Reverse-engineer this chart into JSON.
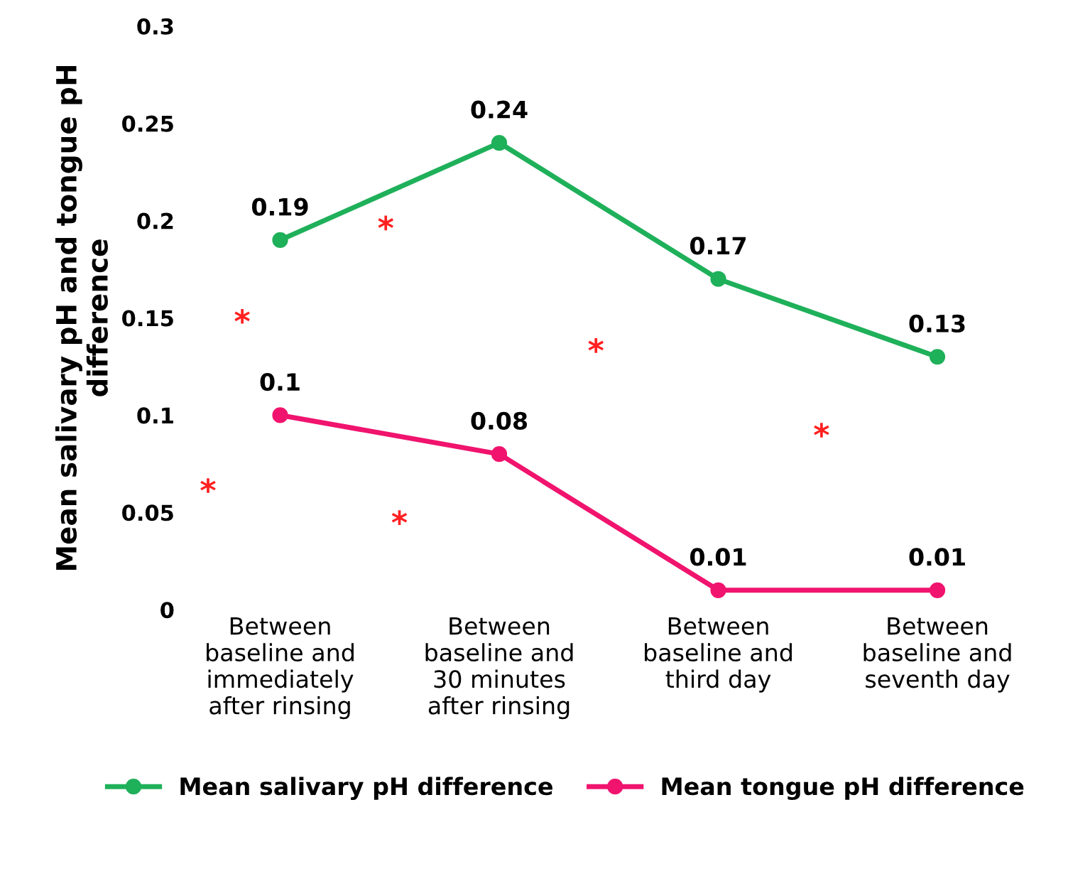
{
  "chart_data": {
    "type": "line",
    "ylabel": "Mean salivary pH and tongue pH difference",
    "categories": [
      "Between\nbaseline and\nimmediately\nafter rinsing",
      "Between\nbaseline and\n30 minutes\nafter rinsing",
      "Between\nbaseline and\nthird day",
      "Between\nbaseline and\nseventh day"
    ],
    "series": [
      {
        "name": "Mean salivary pH difference",
        "color": "#1fb05a",
        "values": [
          0.19,
          0.24,
          0.17,
          0.13
        ]
      },
      {
        "name": "Mean tongue pH difference",
        "color": "#f0146e",
        "values": [
          0.1,
          0.08,
          0.01,
          0.01
        ]
      }
    ],
    "data_labels": true,
    "marker": "circle",
    "line_style": "solid",
    "ylim": [
      0,
      0.3
    ],
    "yticks": [
      0,
      {
        "value": 0.05,
        "label": "0.05"
      },
      {
        "value": 0.1,
        "label": "0.1"
      },
      {
        "value": 0.15,
        "label": "0.15"
      },
      {
        "value": 0.2,
        "label": "0.2"
      },
      {
        "value": 0.25,
        "label": "0.25"
      },
      {
        "value": 0.3,
        "label": "0.3"
      }
    ],
    "grid": false,
    "legend": "bottom",
    "annotations": [
      "*",
      "*",
      "*",
      "*",
      "*",
      "*"
    ]
  }
}
